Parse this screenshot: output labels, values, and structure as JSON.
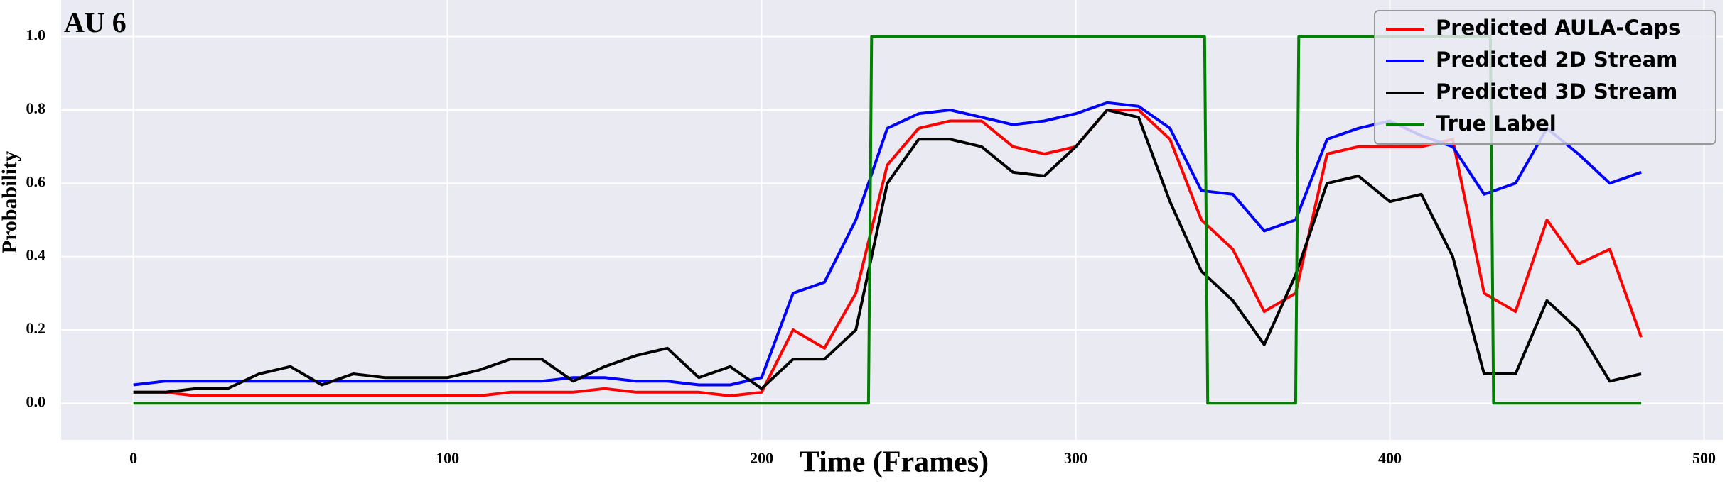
{
  "chart_data": {
    "type": "line",
    "annotation": "AU 6",
    "x_label": "Time (Frames)",
    "y_label": "Probability",
    "x": [
      0,
      10,
      20,
      30,
      40,
      50,
      60,
      70,
      80,
      90,
      100,
      110,
      120,
      130,
      140,
      150,
      160,
      170,
      180,
      190,
      200,
      210,
      220,
      230,
      240,
      250,
      260,
      270,
      280,
      290,
      300,
      310,
      320,
      330,
      340,
      350,
      360,
      370,
      380,
      390,
      400,
      410,
      420,
      430,
      440,
      450,
      460,
      470,
      480
    ],
    "series": [
      {
        "name": "Predicted AULA-Caps",
        "color": "#ff0000",
        "values": [
          0.03,
          0.03,
          0.02,
          0.02,
          0.02,
          0.02,
          0.02,
          0.02,
          0.02,
          0.02,
          0.02,
          0.02,
          0.03,
          0.03,
          0.03,
          0.04,
          0.03,
          0.03,
          0.03,
          0.02,
          0.03,
          0.2,
          0.15,
          0.3,
          0.65,
          0.75,
          0.77,
          0.77,
          0.7,
          0.68,
          0.7,
          0.8,
          0.8,
          0.72,
          0.5,
          0.42,
          0.25,
          0.3,
          0.68,
          0.7,
          0.7,
          0.7,
          0.72,
          0.3,
          0.25,
          0.5,
          0.38,
          0.42,
          0.18
        ]
      },
      {
        "name": "Predicted 2D Stream",
        "color": "#0000ff",
        "values": [
          0.05,
          0.06,
          0.06,
          0.06,
          0.06,
          0.06,
          0.06,
          0.06,
          0.06,
          0.06,
          0.06,
          0.06,
          0.06,
          0.06,
          0.07,
          0.07,
          0.06,
          0.06,
          0.05,
          0.05,
          0.07,
          0.3,
          0.33,
          0.5,
          0.75,
          0.79,
          0.8,
          0.78,
          0.76,
          0.77,
          0.79,
          0.82,
          0.81,
          0.75,
          0.58,
          0.57,
          0.47,
          0.5,
          0.72,
          0.75,
          0.77,
          0.73,
          0.7,
          0.57,
          0.6,
          0.75,
          0.68,
          0.6,
          0.63
        ]
      },
      {
        "name": "Predicted 3D Stream",
        "color": "#000000",
        "values": [
          0.03,
          0.03,
          0.04,
          0.04,
          0.08,
          0.1,
          0.05,
          0.08,
          0.07,
          0.07,
          0.07,
          0.09,
          0.12,
          0.12,
          0.06,
          0.1,
          0.13,
          0.15,
          0.07,
          0.1,
          0.04,
          0.12,
          0.12,
          0.2,
          0.6,
          0.72,
          0.72,
          0.7,
          0.63,
          0.62,
          0.7,
          0.8,
          0.78,
          0.55,
          0.36,
          0.28,
          0.16,
          0.35,
          0.6,
          0.62,
          0.55,
          0.57,
          0.4,
          0.08,
          0.08,
          0.28,
          0.2,
          0.06,
          0.08
        ]
      },
      {
        "name": "True Label",
        "color": "#008000",
        "x": [
          0,
          234,
          235,
          341,
          342,
          370,
          371,
          432,
          433,
          480
        ],
        "values": [
          0,
          0,
          1,
          1,
          0,
          0,
          1,
          1,
          0,
          0
        ]
      }
    ],
    "xlim": [
      -23,
      506
    ],
    "ylim": [
      -0.1,
      1.1
    ],
    "xticks": [
      0,
      100,
      200,
      300,
      400,
      500
    ],
    "yticks": [
      {
        "value": 0,
        "label": "0.0"
      },
      0.2,
      0.4,
      0.6,
      0.8,
      {
        "value": 1,
        "label": "1.0"
      }
    ],
    "grid": true,
    "legend": "upper right"
  }
}
